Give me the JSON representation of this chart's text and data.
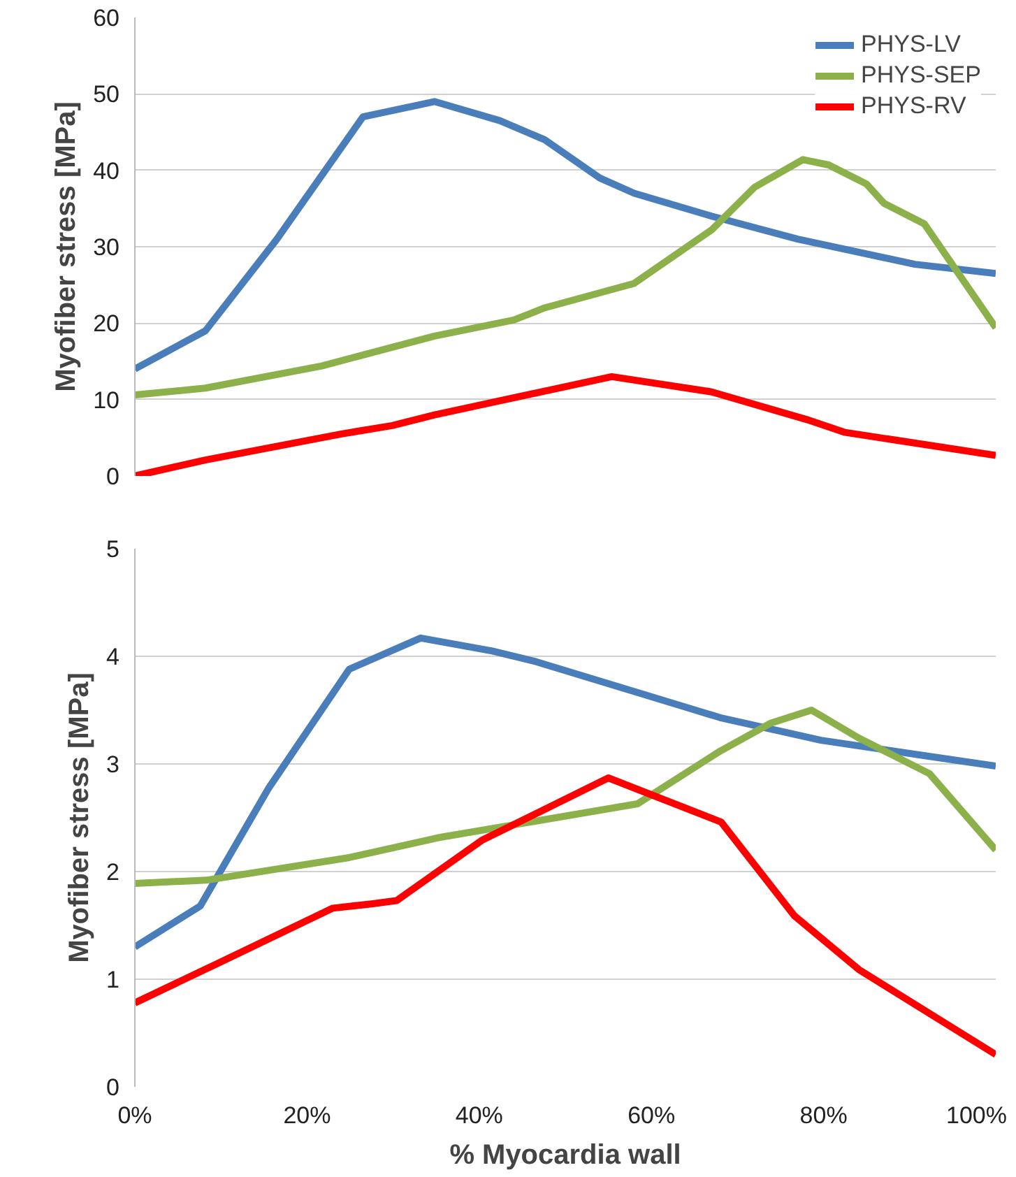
{
  "chart_data": [
    {
      "type": "line",
      "ylabel": "Myofiber stress [MPa]",
      "xlim": [
        0,
        100
      ],
      "ylim": [
        0,
        60
      ],
      "yticks": [
        0,
        10,
        20,
        30,
        40,
        50,
        60
      ],
      "xticks": [
        {
          "value": 0,
          "label": null
        },
        {
          "value": 20,
          "label": null
        },
        {
          "value": 40,
          "label": null
        },
        {
          "value": 60,
          "label": null
        },
        {
          "value": 80,
          "label": null
        },
        {
          "value": 100,
          "label": null
        }
      ],
      "tick_labels": "y",
      "grid": "y",
      "legend": "top right",
      "marker": "none",
      "line_style": "solid",
      "series": [
        {
          "name": "PHYS-LV",
          "color": "#4a7ebb",
          "x": [
            0,
            8.2,
            16.5,
            26.5,
            34.8,
            42.4,
            47.6,
            54,
            58,
            67,
            77,
            90.6,
            100
          ],
          "values": [
            14,
            19,
            31,
            47,
            49,
            46.5,
            44,
            39,
            37,
            34,
            31,
            27.7,
            26.5
          ]
        },
        {
          "name": "PHYS-SEP",
          "color": "#8cb14b",
          "x": [
            0,
            8.2,
            21.7,
            34.8,
            44,
            47.6,
            58,
            67,
            72,
            77.6,
            80.6,
            85,
            87,
            91.7,
            100
          ],
          "values": [
            10.6,
            11.5,
            14.4,
            18.3,
            20.4,
            22,
            25.2,
            32.2,
            37.8,
            41.4,
            40.7,
            38.2,
            35.7,
            33,
            19.4
          ]
        },
        {
          "name": "PHYS-RV",
          "color": "#ff0000",
          "x": [
            0,
            8.2,
            24,
            29.9,
            34.8,
            47.6,
            55.4,
            67,
            78,
            82.5,
            100
          ],
          "values": [
            0,
            2.1,
            5.5,
            6.6,
            8,
            11.1,
            13,
            11,
            7.4,
            5.7,
            2.7
          ]
        }
      ]
    },
    {
      "type": "line",
      "xlabel": "% Myocardia wall",
      "ylabel": "Myofiber stress [MPa]",
      "xlim": [
        0,
        100
      ],
      "ylim": [
        0,
        5
      ],
      "yticks": [
        0,
        1,
        2,
        3,
        4,
        5
      ],
      "xticks": [
        {
          "value": 0,
          "label": "0%"
        },
        {
          "value": 20,
          "label": "20%"
        },
        {
          "value": 40,
          "label": "40%"
        },
        {
          "value": 60,
          "label": "60%"
        },
        {
          "value": 80,
          "label": "80%"
        },
        {
          "value": 100,
          "label": "100%"
        }
      ],
      "grid": "y",
      "marker": "none",
      "line_style": "solid",
      "series": [
        {
          "color": "#4a7ebb",
          "x": [
            0,
            7.6,
            15.5,
            24.9,
            33.2,
            41.5,
            46.6,
            56.9,
            68,
            79.7,
            91.5,
            100
          ],
          "values": [
            1.3,
            1.68,
            2.77,
            3.88,
            4.17,
            4.05,
            3.95,
            3.7,
            3.43,
            3.22,
            3.08,
            2.98
          ]
        },
        {
          "color": "#8cb14b",
          "x": [
            0,
            8.3,
            24.9,
            35.6,
            58.4,
            68,
            73.9,
            78.6,
            84.1,
            92.3,
            100
          ],
          "values": [
            1.89,
            1.92,
            2.13,
            2.32,
            2.63,
            3.12,
            3.38,
            3.5,
            3.24,
            2.91,
            2.2
          ]
        },
        {
          "color": "#ff0000",
          "x": [
            0,
            10.5,
            23,
            27.5,
            30.4,
            40.3,
            55,
            68.1,
            76.6,
            84.1,
            100
          ],
          "values": [
            0.78,
            1.18,
            1.66,
            1.7,
            1.73,
            2.29,
            2.87,
            2.46,
            1.59,
            1.09,
            0.3
          ]
        }
      ]
    }
  ]
}
